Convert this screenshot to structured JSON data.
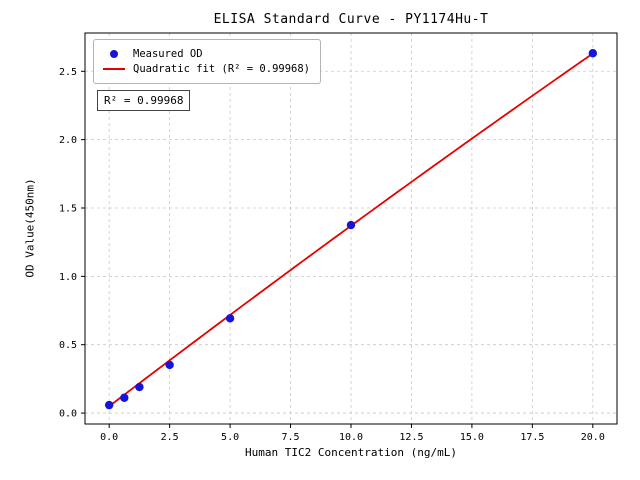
{
  "chart_data": {
    "type": "scatter",
    "title": "ELISA Standard Curve - PY1174Hu-T",
    "xlabel": "Human TIC2 Concentration (ng/mL)",
    "ylabel": "OD Value(450nm)",
    "x": [
      0,
      0.625,
      1.25,
      2.5,
      5,
      10,
      20
    ],
    "y": [
      0.058,
      0.112,
      0.19,
      0.352,
      0.693,
      1.375,
      2.632
    ],
    "fit": {
      "type": "quadratic",
      "coefficients": [
        0.05,
        0.135,
        -0.0003
      ],
      "r_squared": 0.99968
    },
    "legend": {
      "measured": "Measured OD",
      "fit": "Quadratic fit (R² = 0.99968)",
      "position": "upper left"
    },
    "annotation": "R² = 0.99968",
    "xlim": [
      -1,
      21
    ],
    "ylim": [
      -0.08,
      2.78
    ],
    "xticks": [
      0,
      2.5,
      5,
      7.5,
      10,
      12.5,
      15,
      17.5,
      20
    ],
    "xtick_labels": [
      "0.0",
      "2.5",
      "5.0",
      "7.5",
      "10.0",
      "12.5",
      "15.0",
      "17.5",
      "20.0"
    ],
    "yticks": [
      0,
      0.5,
      1,
      1.5,
      2,
      2.5
    ],
    "ytick_labels": [
      "0.0",
      "0.5",
      "1.0",
      "1.5",
      "2.0",
      "2.5"
    ],
    "grid": true,
    "colors": {
      "points": "#1515d8",
      "fit_line": "#e80000",
      "grid": "#c9c9c9",
      "axes": "#000000"
    }
  }
}
